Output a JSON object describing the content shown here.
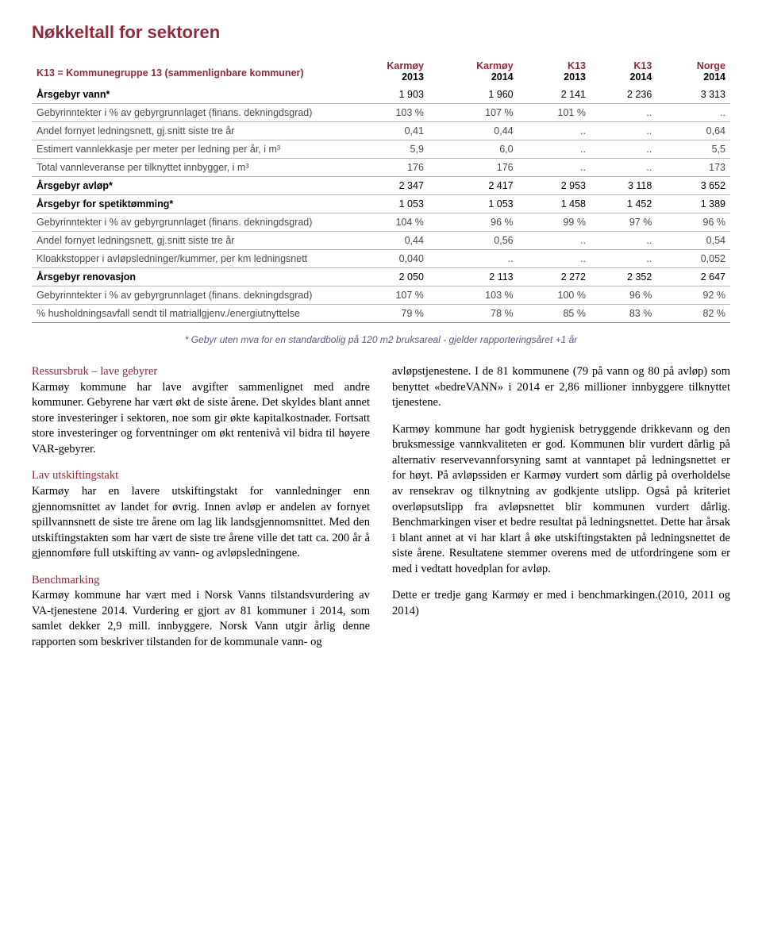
{
  "colors": {
    "title": "#912a3a",
    "subhead": "#912a3a",
    "footnote": "#5a5a8a",
    "header_top": "#912a3a",
    "body_text": "#000000",
    "indent_text": "#4a4a4a",
    "border": "#888888"
  },
  "title": "Nøkkeltall for sektoren",
  "table": {
    "header_label": "K13 = Kommunegruppe 13 (sammenlignbare kommuner)",
    "header_top": [
      "Karmøy",
      "Karmøy",
      "K13",
      "K13",
      "Norge"
    ],
    "header_bottom": [
      "2013",
      "2014",
      "2013",
      "2014",
      "2014"
    ],
    "rows": [
      {
        "label": "Årsgebyr vann*",
        "vals": [
          "1 903",
          "1 960",
          "2 141",
          "2 236",
          "3 313"
        ],
        "section": true
      },
      {
        "label": "Gebyrinntekter i % av gebyrgrunnlaget (finans. dekningdsgrad)",
        "vals": [
          "103 %",
          "107 %",
          "101 %",
          "..",
          ".."
        ],
        "indent": true
      },
      {
        "label": "Andel fornyet ledningsnett, gj.snitt siste tre år",
        "vals": [
          "0,41",
          "0,44",
          "..",
          "..",
          "0,64"
        ],
        "indent": true
      },
      {
        "label": "Estimert vannlekkasje per meter per ledning per år, i m³",
        "vals": [
          "5,9",
          "6,0",
          "..",
          "..",
          "5,5"
        ],
        "indent": true
      },
      {
        "label": "Total vannleveranse per tilknyttet innbygger, i m³",
        "vals": [
          "176",
          "176",
          "..",
          "..",
          "173"
        ],
        "indent": true
      },
      {
        "label": "Årsgebyr avløp*",
        "vals": [
          "2 347",
          "2 417",
          "2 953",
          "3 118",
          "3 652"
        ],
        "section": true
      },
      {
        "label": "Årsgebyr for spetiktømming*",
        "vals": [
          "1 053",
          "1 053",
          "1 458",
          "1 452",
          "1 389"
        ],
        "section": true
      },
      {
        "label": "Gebyrinntekter i % av gebyrgrunnlaget (finans. dekningdsgrad)",
        "vals": [
          "104 %",
          "96 %",
          "99 %",
          "97 %",
          "96 %"
        ],
        "indent": true
      },
      {
        "label": "Andel fornyet ledningsnett, gj.snitt siste tre år",
        "vals": [
          "0,44",
          "0,56",
          "..",
          "..",
          "0,54"
        ],
        "indent": true
      },
      {
        "label": "Kloakkstopper i avløpsledninger/kummer, per km ledningsnett",
        "vals": [
          "0,040",
          "..",
          "..",
          "..",
          "0,052"
        ],
        "indent": true
      },
      {
        "label": "Årsgebyr renovasjon",
        "vals": [
          "2 050",
          "2 113",
          "2 272",
          "2 352",
          "2 647"
        ],
        "section": true
      },
      {
        "label": "Gebyrinntekter i % av gebyrgrunnlaget (finans. dekningdsgrad)",
        "vals": [
          "107 %",
          "103 %",
          "100 %",
          "96 %",
          "92 %"
        ],
        "indent": true
      },
      {
        "label": "% husholdningsavfall sendt til matriallgjenv./energiutnyttelse",
        "vals": [
          "79 %",
          "78 %",
          "85 %",
          "83 %",
          "82 %"
        ],
        "indent": true
      }
    ]
  },
  "footnote": "* Gebyr uten mva for en standardbolig på 120 m2 bruksareal - gjelder rapporteringsåret +1 år",
  "left_col": {
    "h1": "Ressursbruk – lave gebyrer",
    "p1": "Karmøy kommune har lave avgifter sammenlignet med andre kommuner. Gebyrene har vært økt de siste årene. Det skyldes blant annet store investeringer i sektoren, noe som gir økte kapitalkostnader. Fortsatt store investeringer og forventninger om økt rentenivå vil bidra til høyere VAR-gebyrer.",
    "h2": "Lav utskiftingstakt",
    "p2": "Karmøy har en lavere utskiftingstakt for vannledninger enn gjennomsnittet av landet for øvrig. Innen avløp er andelen av fornyet spillvannsnett de siste tre årene om lag lik landsgjennomsnittet. Med den utskiftingstakten som har vært de siste tre årene ville det tatt ca. 200 år å gjennomføre full utskifting av vann- og avløpsledningene.",
    "h3": "Benchmarking",
    "p3": "Karmøy kommune har vært med i Norsk Vanns tilstandsvurdering av VA-tjenestene 2014. Vurdering er gjort av 81 kommuner i 2014, som samlet dekker 2,9 mill. innbyggere. Norsk Vann utgir årlig denne rapporten som beskriver tilstanden for de kommunale vann- og"
  },
  "right_col": {
    "p1": "avløpstjenestene. I de 81 kommunene (79 på vann og 80 på avløp) som benyttet «bedreVANN» i 2014 er 2,86 millioner innbyggere tilknyttet tjenestene.",
    "p2": "Karmøy kommune har godt hygienisk betryggende drikkevann og den bruksmessige vannkvaliteten er god. Kommunen blir vurdert dårlig på alternativ reservevannforsyning samt at vanntapet på ledningsnettet er for høyt. På avløpssiden er Karmøy vurdert som dårlig på overholdelse av rensekrav og tilknytning av godkjente utslipp. Også på kriteriet overløpsutslipp fra avløpsnettet blir kommunen vurdert dårlig. Benchmarkingen viser et bedre resultat på ledningsnettet. Dette har årsak i blant annet at vi har klart å øke utskiftingstakten på ledningsnettet de siste årene. Resultatene stemmer overens med de utfordringene som er med i vedtatt hovedplan for avløp.",
    "p3": "Dette er tredje gang Karmøy er med i benchmarkingen.(2010, 2011 og 2014)"
  }
}
